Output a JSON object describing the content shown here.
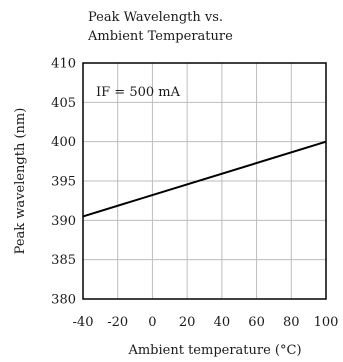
{
  "chart_data": {
    "type": "line",
    "title_lines": [
      "Peak Wavelength vs.",
      "Ambient Temperature"
    ],
    "xlabel": "Ambient temperature (°C)",
    "ylabel": "Peak wavelength (nm)",
    "annotation": "IF = 500 mA",
    "xlim": [
      -40,
      100
    ],
    "ylim": [
      380,
      410
    ],
    "x_ticks": [
      -40,
      -20,
      0,
      20,
      40,
      60,
      80,
      100
    ],
    "y_ticks": [
      380,
      385,
      390,
      395,
      400,
      405,
      410
    ],
    "grid": true,
    "series": [
      {
        "x": [
          -40,
          100
        ],
        "y": [
          390.5,
          400
        ]
      }
    ]
  }
}
